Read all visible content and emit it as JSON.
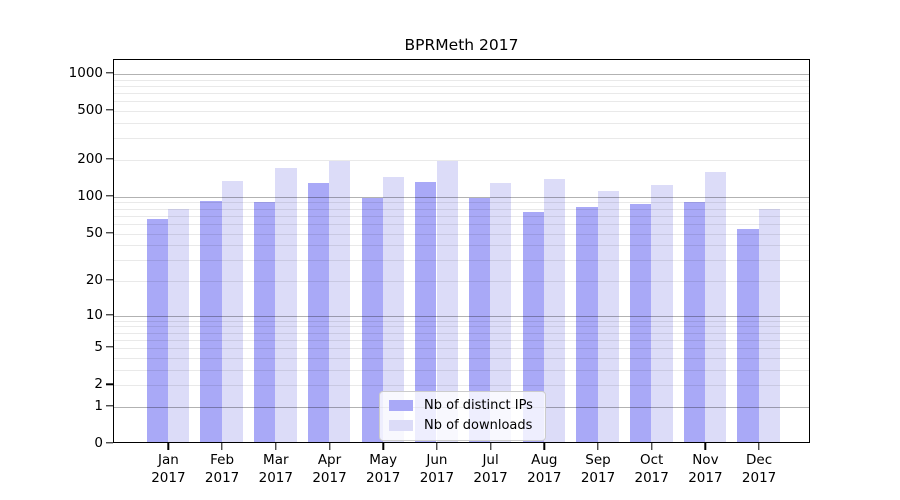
{
  "chart_data": {
    "type": "bar",
    "title": "BPRMeth 2017",
    "categories": [
      "Jan",
      "Feb",
      "Mar",
      "Apr",
      "May",
      "Jun",
      "Jul",
      "Aug",
      "Sep",
      "Oct",
      "Nov",
      "Dec"
    ],
    "x_tick_year": "2017",
    "series": [
      {
        "name": "Nb of distinct IPs",
        "color": "#a9a9f7",
        "values": [
          63,
          89,
          87,
          125,
          95,
          128,
          95,
          72,
          80,
          85,
          87,
          52
        ]
      },
      {
        "name": "Nb of downloads",
        "color": "#dcdcf8",
        "values": [
          76,
          131,
          165,
          189,
          141,
          189,
          125,
          134,
          108,
          120,
          153,
          77
        ]
      }
    ],
    "xlabel": "",
    "ylabel": "",
    "yscale": "log1p",
    "ylim": [
      0,
      1300
    ],
    "y_tick_values": [
      0,
      1,
      2,
      5,
      10,
      20,
      50,
      100,
      200,
      500,
      1000
    ],
    "y_tick_labels": [
      "0",
      "1",
      "2",
      "5",
      "10",
      "20",
      "50",
      "100",
      "200",
      "500",
      "1000"
    ],
    "grid": "both",
    "legend_position": "lower-center"
  },
  "legend": {
    "items": [
      {
        "label": "Nb of distinct IPs"
      },
      {
        "label": "Nb of downloads"
      }
    ]
  },
  "colors": {
    "grid_major": "rgba(0,0,0,0.30)",
    "grid_minor": "rgba(0,0,0,0.085)",
    "axis_frame": "#000000",
    "legend_border": "#cccccc",
    "legend_background": "rgba(255,255,255,0.8)"
  }
}
